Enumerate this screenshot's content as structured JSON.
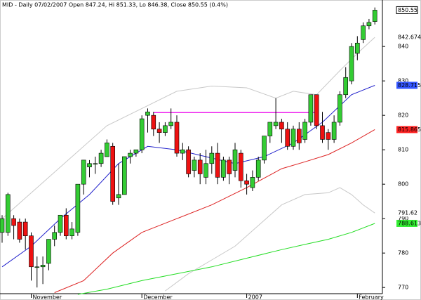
{
  "chart_data": {
    "type": "candlestick",
    "title": "MID - Daily 07/02/2007 Open 847.24, Hi 851.33, Lo 846.38, Close 850.55 (0.4%)",
    "open": [
      786,
      786,
      790,
      789,
      789,
      785,
      776,
      776,
      777,
      784,
      786,
      791,
      785,
      786,
      800,
      805,
      806,
      806,
      808,
      811,
      796,
      797,
      808,
      809,
      810,
      820,
      820,
      816,
      815,
      817,
      818,
      809,
      810,
      804,
      807,
      802,
      806,
      809,
      802,
      807,
      804,
      809,
      801,
      799,
      802,
      807,
      814,
      817,
      818,
      816,
      811,
      816,
      813,
      818,
      826,
      817,
      815,
      813,
      818,
      826,
      830,
      838,
      842,
      846,
      847.24
    ],
    "high": [
      791,
      797.5,
      791,
      790,
      790,
      786,
      779,
      779,
      784,
      788,
      791,
      793,
      789,
      800,
      807,
      807,
      808,
      810,
      813,
      812,
      806,
      808,
      810,
      810,
      820,
      822,
      821,
      818,
      818,
      822,
      820,
      812,
      811,
      808,
      809,
      810,
      811,
      812,
      808,
      808,
      812,
      810,
      803,
      804,
      808,
      814,
      818,
      825,
      819,
      818,
      817,
      818,
      819,
      826,
      826,
      821,
      816,
      820,
      827,
      834,
      841,
      843,
      847,
      848,
      851.33
    ],
    "low": [
      783,
      785,
      784,
      783,
      781,
      772,
      770,
      771,
      775,
      782,
      785,
      784,
      784,
      785,
      797,
      802,
      803,
      805,
      808,
      794,
      794,
      797,
      806,
      808,
      809,
      815,
      814,
      812,
      814,
      816,
      808,
      807,
      802,
      802,
      800,
      800,
      803,
      800,
      801,
      800,
      802,
      799,
      797,
      798,
      801,
      806,
      812,
      816,
      812,
      810,
      810,
      810,
      812,
      817,
      816,
      812,
      810,
      812,
      817,
      825,
      829,
      836,
      841,
      845,
      846.38
    ],
    "close": [
      790,
      797,
      788,
      784,
      785,
      776,
      776,
      776.5,
      784,
      786,
      791,
      785,
      787,
      800,
      807,
      806,
      806,
      809,
      812,
      795,
      797,
      808,
      809,
      810,
      819,
      821,
      816,
      815,
      817,
      818,
      809,
      810,
      803,
      807,
      803,
      806,
      809,
      802,
      807,
      803,
      810,
      801,
      800,
      802,
      807,
      814,
      818,
      818,
      816,
      811,
      816,
      812,
      818,
      826,
      817,
      813,
      813,
      818,
      826,
      831,
      840,
      841,
      846,
      847,
      850.55
    ],
    "up_color": "#33cc33",
    "down_color": "#ee1111",
    "ylim": [
      768.2,
      853.5
    ],
    "yticks": [
      770,
      780,
      790,
      800,
      810,
      820,
      830,
      840
    ],
    "xlim": [
      -0.36,
      65.3
    ],
    "xticks": [
      {
        "value": 5,
        "label": "November"
      },
      {
        "value": 24,
        "label": "December"
      },
      {
        "value": 42,
        "label": "2007"
      },
      {
        "value": 61,
        "label": "February"
      }
    ],
    "overlays": [
      {
        "color": "#c8c8c8",
        "x": [
          0,
          6,
          12,
          18,
          24,
          30,
          36,
          42,
          47,
          50,
          54,
          58,
          61,
          64
        ],
        "values": [
          790,
          799,
          808,
          817,
          822,
          827,
          828.5,
          828,
          825,
          827,
          826,
          833,
          838,
          842.674
        ],
        "label_bg": "#ffffff",
        "label_color": "#888888"
      },
      {
        "color": "#2222cc",
        "x": [
          0,
          5,
          10,
          15,
          20,
          25,
          30,
          35,
          40,
          45,
          50,
          55,
          60,
          64
        ],
        "values": [
          776,
          782,
          790,
          797,
          806,
          811,
          810,
          808,
          806,
          808,
          812,
          818,
          826,
          828.715
        ],
        "label_bg": "#3355ff",
        "label_color": "#ffffff"
      },
      {
        "color": "#dd2222",
        "x": [
          9,
          14,
          19,
          24,
          30,
          36,
          42,
          48,
          52,
          56,
          60,
          64
        ],
        "values": [
          768.5,
          772,
          780,
          786,
          790,
          794,
          799,
          804.5,
          806.5,
          808.6,
          812,
          815.865
        ],
        "label_bg": "#ff2222",
        "label_color": "#ffffff"
      },
      {
        "color": "#c8c8c8",
        "x": [
          28,
          32,
          36,
          40,
          44,
          48,
          52,
          56,
          58,
          60,
          62,
          64
        ],
        "values": [
          769,
          774,
          778,
          782,
          788,
          794,
          797,
          797.5,
          799,
          797,
          794,
          791.62
        ],
        "label_bg": "#ffffff",
        "label_color": "#888888"
      },
      {
        "color": "#22dd22",
        "x": [
          13,
          18,
          24,
          30,
          36,
          42,
          48,
          52,
          56,
          60,
          64
        ],
        "values": [
          768,
          769.5,
          772,
          774,
          776,
          778.5,
          781,
          782.5,
          784,
          786,
          788.613
        ],
        "label_bg": "#33ee33",
        "label_color": "#000000"
      },
      {
        "color": "#ee22ee",
        "x": [
          26,
          54
        ],
        "values": [
          820.8,
          820.8
        ]
      }
    ],
    "last_label_bg": "#ffffff"
  }
}
